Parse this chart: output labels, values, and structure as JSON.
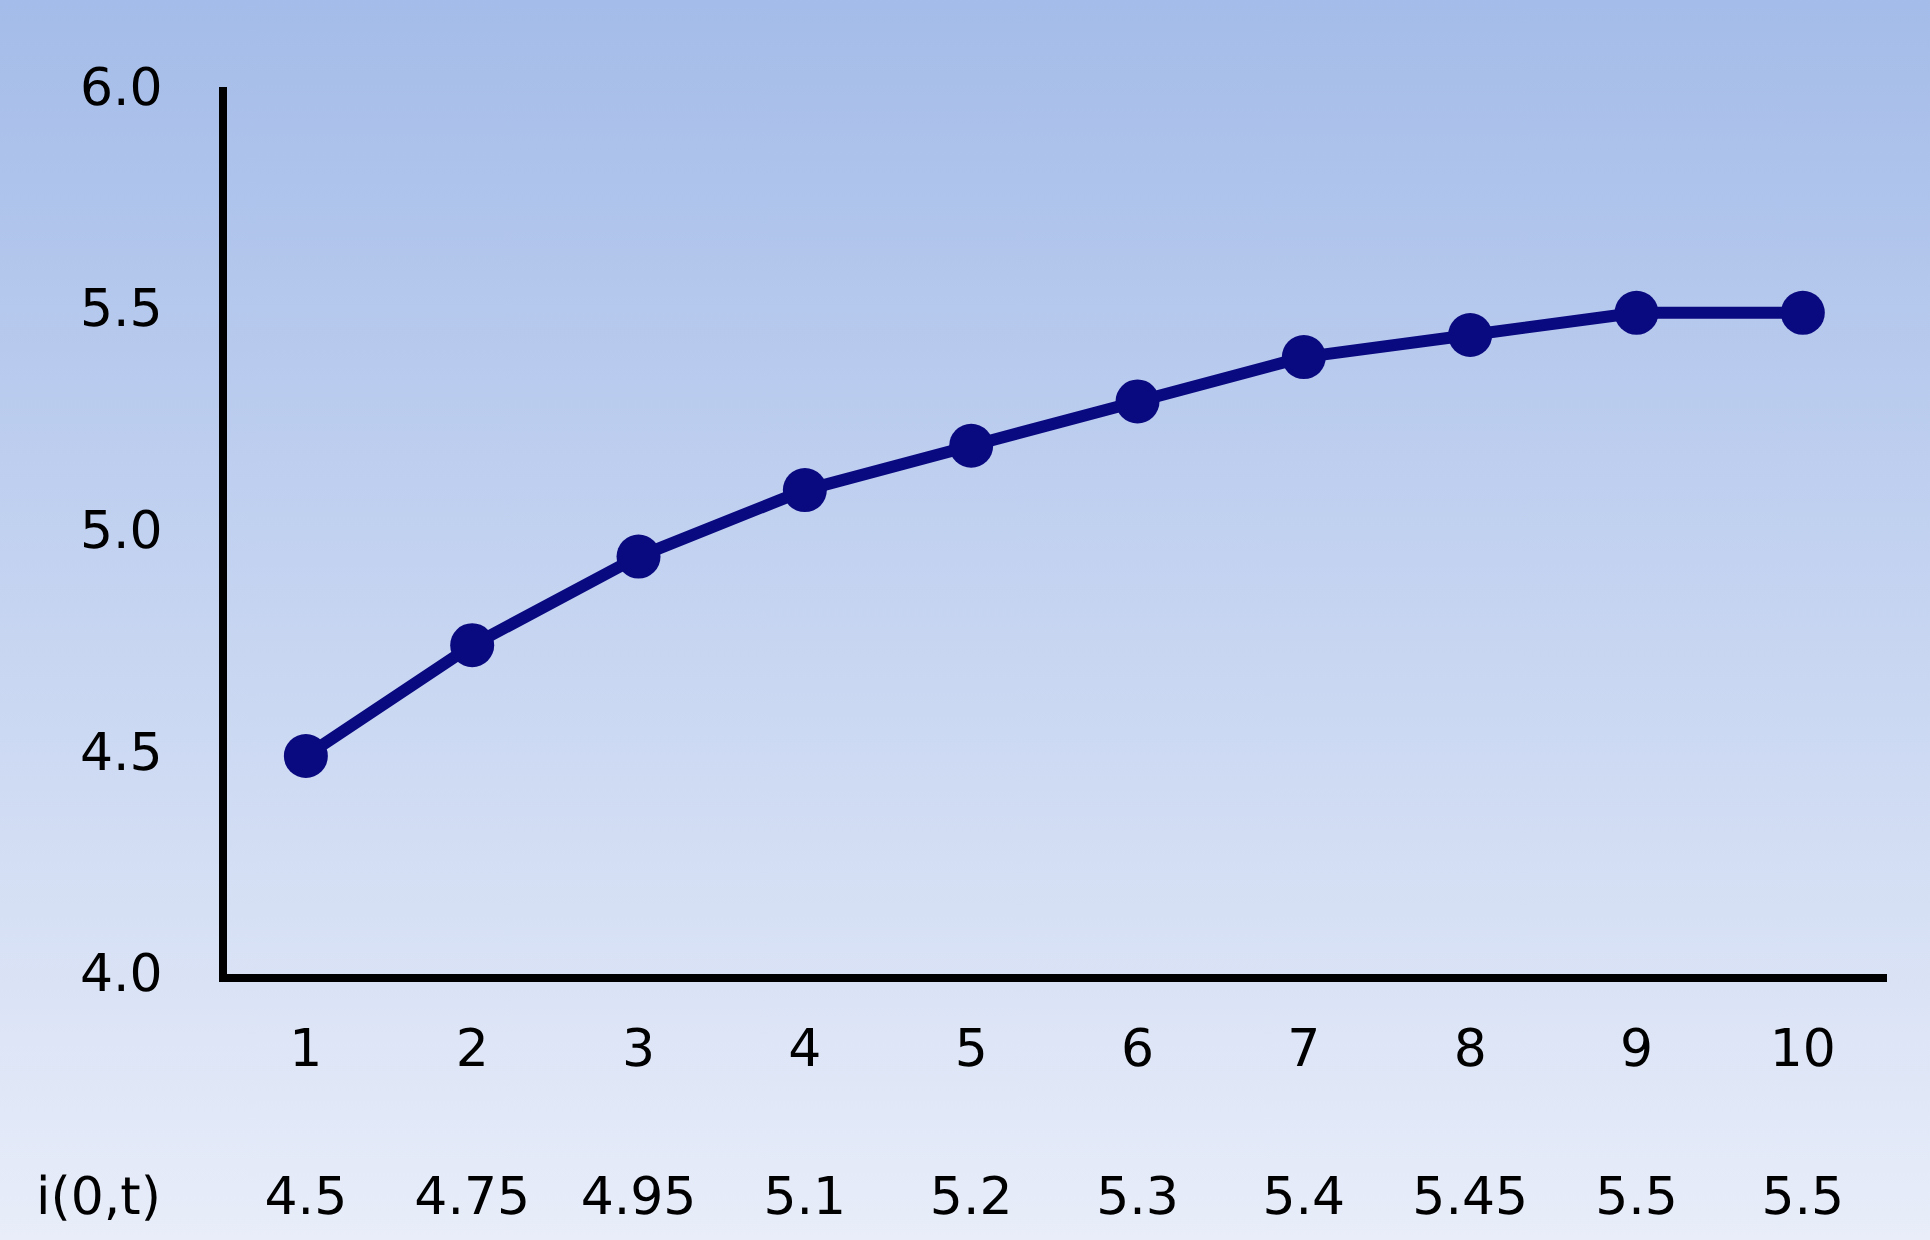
{
  "chart_data": {
    "type": "line",
    "categories": [
      "1",
      "2",
      "3",
      "4",
      "5",
      "6",
      "7",
      "8",
      "9",
      "10"
    ],
    "series": [
      {
        "name": "i(0,t)",
        "color": "#0a0a80",
        "values": [
          4.5,
          4.75,
          4.95,
          5.1,
          5.2,
          5.3,
          5.4,
          5.45,
          5.5,
          5.5
        ]
      }
    ],
    "ylim": [
      4.0,
      6.0
    ],
    "yticks": [
      {
        "value": 4.0,
        "label": "4.0"
      },
      {
        "value": 4.5,
        "label": "4.5"
      },
      {
        "value": 5.0,
        "label": "5.0"
      },
      {
        "value": 5.5,
        "label": "5.5"
      },
      {
        "value": 6.0,
        "label": "6.0"
      }
    ],
    "grid": false,
    "legend": false,
    "marker": "circle",
    "line_style": "solid",
    "data_labels": true
  }
}
